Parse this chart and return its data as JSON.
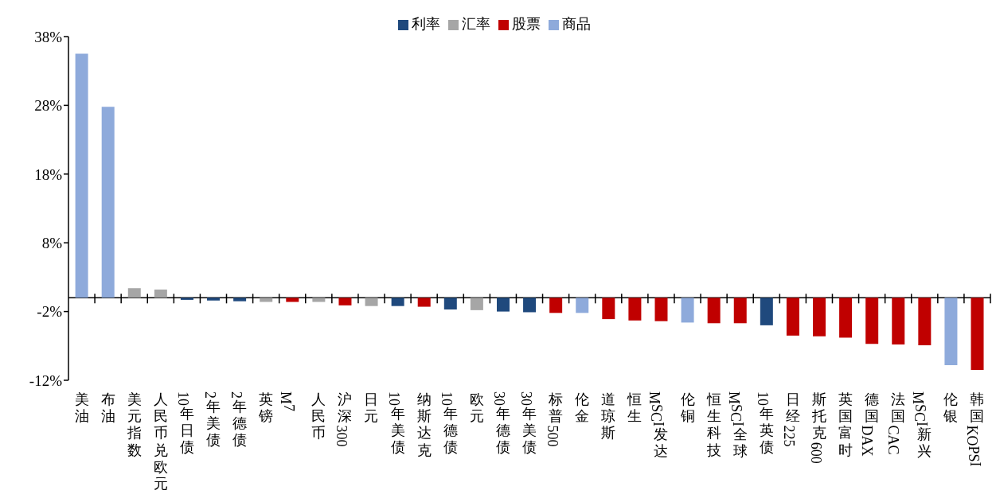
{
  "chart_data": {
    "type": "bar",
    "stacked": true,
    "categories": [
      "美油",
      "布油",
      "美元指数",
      "人民币兑欧元",
      "10年日债",
      "2年美债",
      "2年德债",
      "英镑",
      "M7",
      "人民币",
      "沪深300",
      "日元",
      "10年美债",
      "纳斯达克",
      "10年德债",
      "欧元",
      "30年德债",
      "30年美债",
      "标普500",
      "伦金",
      "道琼斯",
      "恒生",
      "MSCI发达",
      "伦铜",
      "恒生科技",
      "MSCI全球",
      "10年英债",
      "日经225",
      "斯托克600",
      "英国富时",
      "德国DAX",
      "法国CAC",
      "MSCI新兴",
      "伦银",
      "韩国KOPSI"
    ],
    "series": [
      {
        "name": "利率",
        "color": "#1f497d",
        "values": [
          null,
          null,
          null,
          null,
          -0.3,
          -0.4,
          -0.5,
          null,
          null,
          null,
          null,
          null,
          -1.2,
          null,
          -1.7,
          null,
          -2.0,
          -2.1,
          null,
          null,
          null,
          null,
          null,
          null,
          null,
          null,
          -4.0,
          null,
          null,
          null,
          null,
          null,
          null,
          null,
          null
        ]
      },
      {
        "name": "汇率",
        "color": "#a6a6a6",
        "values": [
          null,
          null,
          1.4,
          1.2,
          null,
          null,
          null,
          -0.6,
          null,
          -0.6,
          null,
          -1.2,
          null,
          null,
          null,
          -1.8,
          null,
          null,
          null,
          null,
          null,
          null,
          null,
          null,
          null,
          null,
          null,
          null,
          null,
          null,
          null,
          null,
          null,
          null,
          null
        ]
      },
      {
        "name": "股票",
        "color": "#c00000",
        "values": [
          null,
          null,
          null,
          null,
          null,
          null,
          null,
          null,
          -0.6,
          null,
          -1.1,
          null,
          null,
          -1.3,
          null,
          null,
          null,
          null,
          -2.2,
          null,
          -3.1,
          -3.3,
          -3.4,
          null,
          -3.7,
          -3.7,
          null,
          -5.5,
          -5.6,
          -5.8,
          -6.7,
          -6.8,
          -6.9,
          null,
          -10.5
        ]
      },
      {
        "name": "商品",
        "color": "#8eaadb",
        "values": [
          35.5,
          27.8,
          null,
          null,
          null,
          null,
          null,
          null,
          null,
          null,
          null,
          null,
          null,
          null,
          null,
          null,
          null,
          null,
          null,
          -2.2,
          null,
          null,
          null,
          -3.6,
          null,
          null,
          null,
          null,
          null,
          null,
          null,
          null,
          null,
          -9.8,
          null
        ]
      }
    ],
    "ylim": [
      -12,
      38
    ],
    "yticks": [
      {
        "value": -12,
        "label": "-12%"
      },
      {
        "value": -2,
        "label": "-2%"
      },
      {
        "value": 8,
        "label": "8%"
      },
      {
        "value": 18,
        "label": "18%"
      },
      {
        "value": 28,
        "label": "28%"
      },
      {
        "value": 38,
        "label": "38%"
      }
    ],
    "grid": false,
    "legend": "top"
  }
}
